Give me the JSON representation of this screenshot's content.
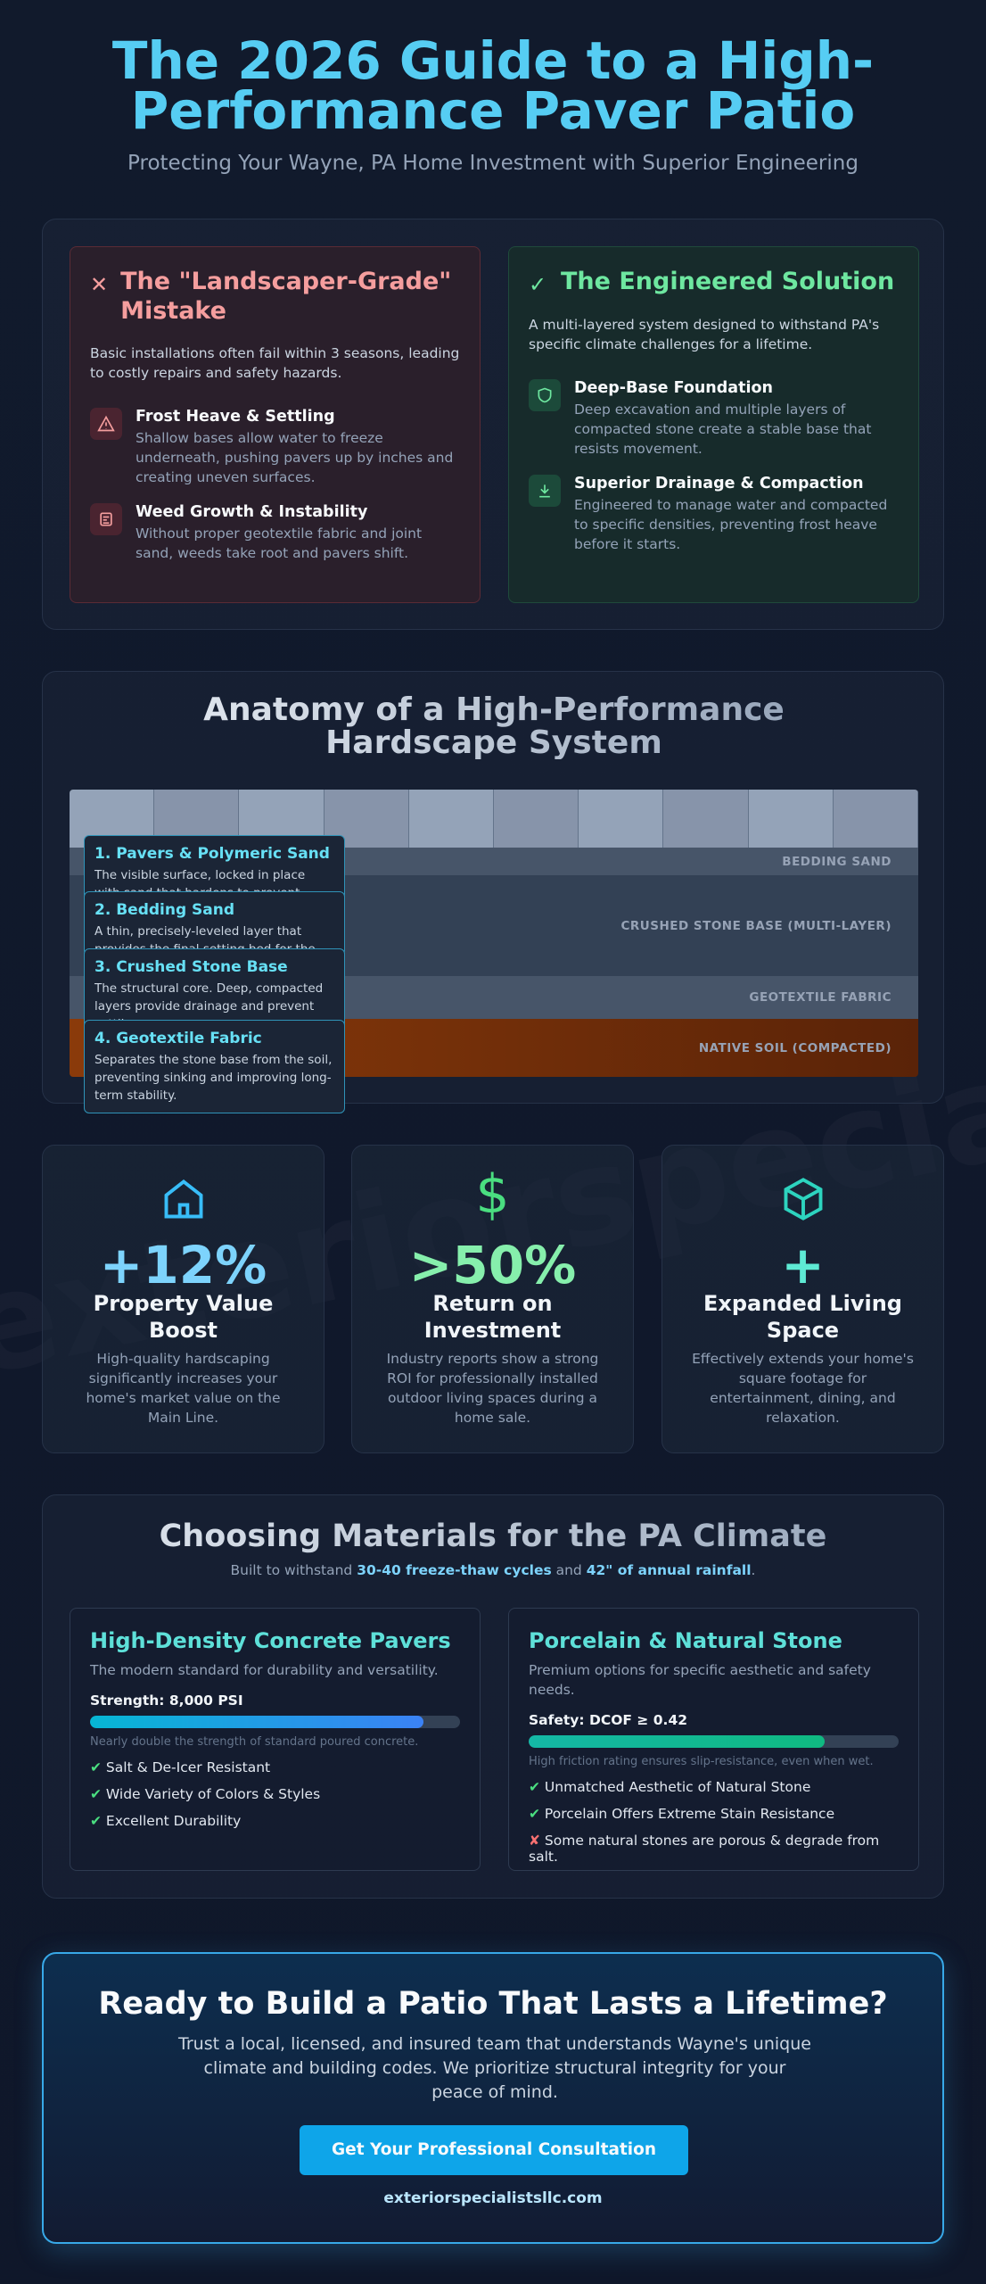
{
  "header": {
    "title": "The 2026 Guide to a High-Performance Paver Patio",
    "subtitle": "Protecting Your Wayne, PA Home Investment with Superior Engineering"
  },
  "watermark": "exteriorspecialistsllc.com",
  "comparison": {
    "cards": [
      {
        "title": "The \"Landscaper-Grade\" Mistake",
        "intro": "Basic installations often fail within 3 seasons, leading to costly repairs and safety hazards.",
        "items": [
          {
            "title": "Frost Heave & Settling",
            "text": "Shallow bases allow water to freeze underneath, pushing pavers up by inches and creating uneven surfaces."
          },
          {
            "title": "Weed Growth & Instability",
            "text": "Without proper geotextile fabric and joint sand, weeds take root and pavers shift."
          }
        ]
      },
      {
        "title": "The Engineered Solution",
        "intro": "A multi-layered system designed to withstand PA's specific climate challenges for a lifetime.",
        "items": [
          {
            "title": "Deep-Base Foundation",
            "text": "Deep excavation and multiple layers of compacted stone create a stable base that resists movement."
          },
          {
            "title": "Superior Drainage & Compaction",
            "text": "Engineered to manage water and compacted to specific densities, preventing frost heave before it starts."
          }
        ]
      }
    ]
  },
  "anatomy": {
    "title": "Anatomy of a High-Performance Hardscape System",
    "layers": [
      "BEDDING SAND",
      "CRUSHED STONE BASE (MULTI-LAYER)",
      "GEOTEXTILE FABRIC",
      "NATIVE SOIL (COMPACTED)"
    ],
    "callouts": [
      {
        "title": "1. Pavers & Polymeric Sand",
        "text": "The visible surface, locked in place with sand that hardens to prevent weeds and erosion."
      },
      {
        "title": "2. Bedding Sand",
        "text": "A thin, precisely-leveled layer that provides the final setting bed for the pavers."
      },
      {
        "title": "3. Crushed Stone Base",
        "text": "The structural core. Deep, compacted layers provide drainage and prevent settling."
      },
      {
        "title": "4. Geotextile Fabric",
        "text": "Separates the stone base from the soil, preventing sinking and improving long-term stability."
      }
    ]
  },
  "stats": [
    {
      "value": "+12%",
      "title": "Property Value Boost",
      "text": "High-quality hardscaping significantly increases your home's market value on the Main Line."
    },
    {
      "value": ">50%",
      "title": "Return on Investment",
      "text": "Industry reports show a strong ROI for professionally installed outdoor living spaces during a home sale."
    },
    {
      "value": "+",
      "title": "Expanded Living Space",
      "text": "Effectively extends your home's square footage for entertainment, dining, and relaxation."
    }
  ],
  "materials": {
    "title": "Choosing Materials for the PA Climate",
    "subtitle": [
      "Built to withstand ",
      "30-40 freeze-thaw cycles",
      " and ",
      "42\" of annual rainfall",
      "."
    ],
    "cards": [
      {
        "title": "High-Density Concrete Pavers",
        "desc": "The modern standard for durability and versatility.",
        "metric": "Strength: 8,000 PSI",
        "level": 90,
        "note": "Nearly double the strength of standard poured concrete.",
        "items": [
          {
            "text": "Salt & De-Icer Resistant",
            "status": "pro"
          },
          {
            "text": "Wide Variety of Colors & Styles",
            "status": "pro"
          },
          {
            "text": "Excellent Durability",
            "status": "pro"
          }
        ]
      },
      {
        "title": "Porcelain & Natural Stone",
        "desc": "Premium options for specific aesthetic and safety needs.",
        "metric": "Safety: DCOF ≥ 0.42",
        "level": 80,
        "note": "High friction rating ensures slip-resistance, even when wet.",
        "items": [
          {
            "text": "Unmatched Aesthetic of Natural Stone",
            "status": "pro"
          },
          {
            "text": "Porcelain Offers Extreme Stain Resistance",
            "status": "pro"
          },
          {
            "text": "Some natural stones are porous & degrade from salt.",
            "status": "con"
          }
        ]
      }
    ]
  },
  "cta": {
    "title": "Ready to Build a Patio That Lasts a Lifetime?",
    "text": "Trust a local, licensed, and insured team that understands Wayne's unique climate and building codes. We prioritize structural integrity for your peace of mind.",
    "button": "Get Your Professional Consultation",
    "url": "exteriorspecialistsllc.com"
  }
}
